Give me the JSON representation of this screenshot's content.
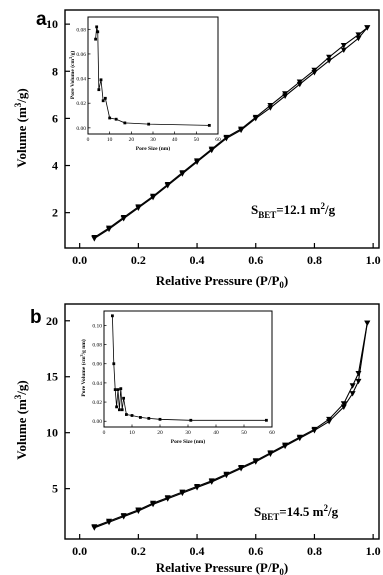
{
  "chart_data": [
    {
      "panel": "a",
      "type": "line",
      "xlabel": "Relative Pressure (P/P",
      "xlabel_sub": "0",
      "xlabel_end": ")",
      "ylabel": "Volume (m",
      "ylabel_sup": "3",
      "ylabel_end": "/g)",
      "xlim": [
        -0.05,
        1.02
      ],
      "ylim": [
        0.5,
        10.6
      ],
      "xticks": [
        "0.0",
        "0.2",
        "0.4",
        "0.6",
        "0.8",
        "1.0"
      ],
      "yticks": [
        "2",
        "4",
        "6",
        "8",
        "10"
      ],
      "annotation": {
        "pre": "S",
        "sub": "BET",
        "mid": "=12.1 m",
        "sup": "2",
        "post": "/g"
      },
      "series": [
        {
          "marker": "triangle-down",
          "x": [
            0.05,
            0.1,
            0.15,
            0.2,
            0.25,
            0.3,
            0.35,
            0.4,
            0.45,
            0.5,
            0.55,
            0.6,
            0.65,
            0.7,
            0.75,
            0.8,
            0.85,
            0.9,
            0.95,
            0.98
          ],
          "y": [
            0.9,
            1.3,
            1.75,
            2.2,
            2.65,
            3.15,
            3.65,
            4.15,
            4.65,
            5.15,
            5.5,
            6.0,
            6.45,
            6.95,
            7.45,
            7.95,
            8.45,
            8.9,
            9.4,
            9.85
          ]
        },
        {
          "marker": "triangle-down",
          "x": [
            0.98,
            0.95,
            0.9,
            0.85,
            0.8,
            0.75,
            0.7,
            0.65,
            0.6,
            0.55,
            0.5,
            0.45,
            0.4,
            0.35,
            0.3,
            0.25,
            0.2,
            0.15,
            0.1,
            0.05
          ],
          "y": [
            9.85,
            9.55,
            9.1,
            8.6,
            8.05,
            7.55,
            7.05,
            6.55,
            6.05,
            5.55,
            5.2,
            4.7,
            4.2,
            3.7,
            3.2,
            2.7,
            2.25,
            1.8,
            1.35,
            0.95
          ]
        }
      ],
      "inset": {
        "type": "line",
        "xlabel": "Pore Size (nm)",
        "ylabel": "Pore Volume (cm",
        "ylabel_sup": "3",
        "ylabel_end": "/g)",
        "xlim": [
          0,
          60
        ],
        "ylim": [
          -0.005,
          0.09
        ],
        "xticks": [
          "0",
          "10",
          "20",
          "30",
          "40",
          "50",
          "60"
        ],
        "yticks": [
          "0.00",
          "0.02",
          "0.04",
          "0.06",
          "0.08"
        ],
        "series": [
          {
            "marker": "square",
            "x": [
              3.5,
              4.0,
              4.5,
              5.0,
              6.0,
              7.0,
              8.0,
              10.0,
              13.0,
              17.0,
              28.0,
              56.0
            ],
            "y": [
              0.072,
              0.082,
              0.078,
              0.031,
              0.039,
              0.022,
              0.024,
              0.008,
              0.007,
              0.004,
              0.003,
              0.002
            ]
          }
        ]
      }
    },
    {
      "panel": "b",
      "type": "line",
      "xlabel": "Relative Pressure (P/P",
      "xlabel_sub": "0",
      "xlabel_end": ")",
      "ylabel": "Volume (m",
      "ylabel_sup": "3",
      "ylabel_end": "/g)",
      "xlim": [
        -0.05,
        1.02
      ],
      "ylim": [
        0.5,
        21.5
      ],
      "xticks": [
        "0.0",
        "0.2",
        "0.4",
        "0.6",
        "0.8",
        "1.0"
      ],
      "yticks": [
        "5",
        "10",
        "15",
        "20"
      ],
      "annotation": {
        "pre": "S",
        "sub": "BET",
        "mid": "=14.5 m",
        "sup": "2",
        "post": "/g"
      },
      "series": [
        {
          "marker": "triangle-down",
          "x": [
            0.05,
            0.1,
            0.15,
            0.2,
            0.25,
            0.3,
            0.35,
            0.4,
            0.45,
            0.5,
            0.55,
            0.6,
            0.65,
            0.7,
            0.75,
            0.8,
            0.85,
            0.9,
            0.93,
            0.95,
            0.98
          ],
          "y": [
            1.5,
            2.0,
            2.5,
            3.0,
            3.6,
            4.1,
            4.6,
            5.1,
            5.6,
            6.2,
            6.8,
            7.4,
            8.1,
            8.8,
            9.5,
            10.2,
            11.0,
            12.3,
            13.5,
            14.6,
            19.8
          ]
        },
        {
          "marker": "triangle-down",
          "x": [
            0.98,
            0.95,
            0.93,
            0.9,
            0.85,
            0.8,
            0.75,
            0.7,
            0.65,
            0.6,
            0.55,
            0.5,
            0.45,
            0.4,
            0.35,
            0.3,
            0.25,
            0.2,
            0.15,
            0.1,
            0.05
          ],
          "y": [
            19.8,
            15.3,
            14.2,
            12.6,
            11.2,
            10.3,
            9.6,
            8.9,
            8.2,
            7.5,
            6.9,
            6.3,
            5.7,
            5.2,
            4.7,
            4.2,
            3.7,
            3.1,
            2.6,
            2.1,
            1.6
          ]
        }
      ],
      "inset": {
        "type": "line",
        "xlabel": "Pore Size (nm)",
        "ylabel": "Pore Volume (cm",
        "ylabel_sup": "3",
        "ylabel_end": "/g nm)",
        "xlim": [
          0,
          60
        ],
        "ylim": [
          -0.006,
          0.115
        ],
        "xticks": [
          "0",
          "10",
          "20",
          "30",
          "40",
          "50",
          "60"
        ],
        "yticks": [
          "0.00",
          "0.02",
          "0.04",
          "0.06",
          "0.08",
          "0.10"
        ],
        "series": [
          {
            "marker": "square",
            "x": [
              3.0,
              3.5,
              4.0,
              4.5,
              5.0,
              5.5,
              6.0,
              6.5,
              7.0,
              8.0,
              10.0,
              13.0,
              16.0,
              20.0,
              31.0,
              58.0
            ],
            "y": [
              0.11,
              0.06,
              0.033,
              0.015,
              0.033,
              0.012,
              0.034,
              0.012,
              0.024,
              0.007,
              0.006,
              0.004,
              0.003,
              0.002,
              0.001,
              0.001
            ]
          }
        ]
      }
    }
  ]
}
